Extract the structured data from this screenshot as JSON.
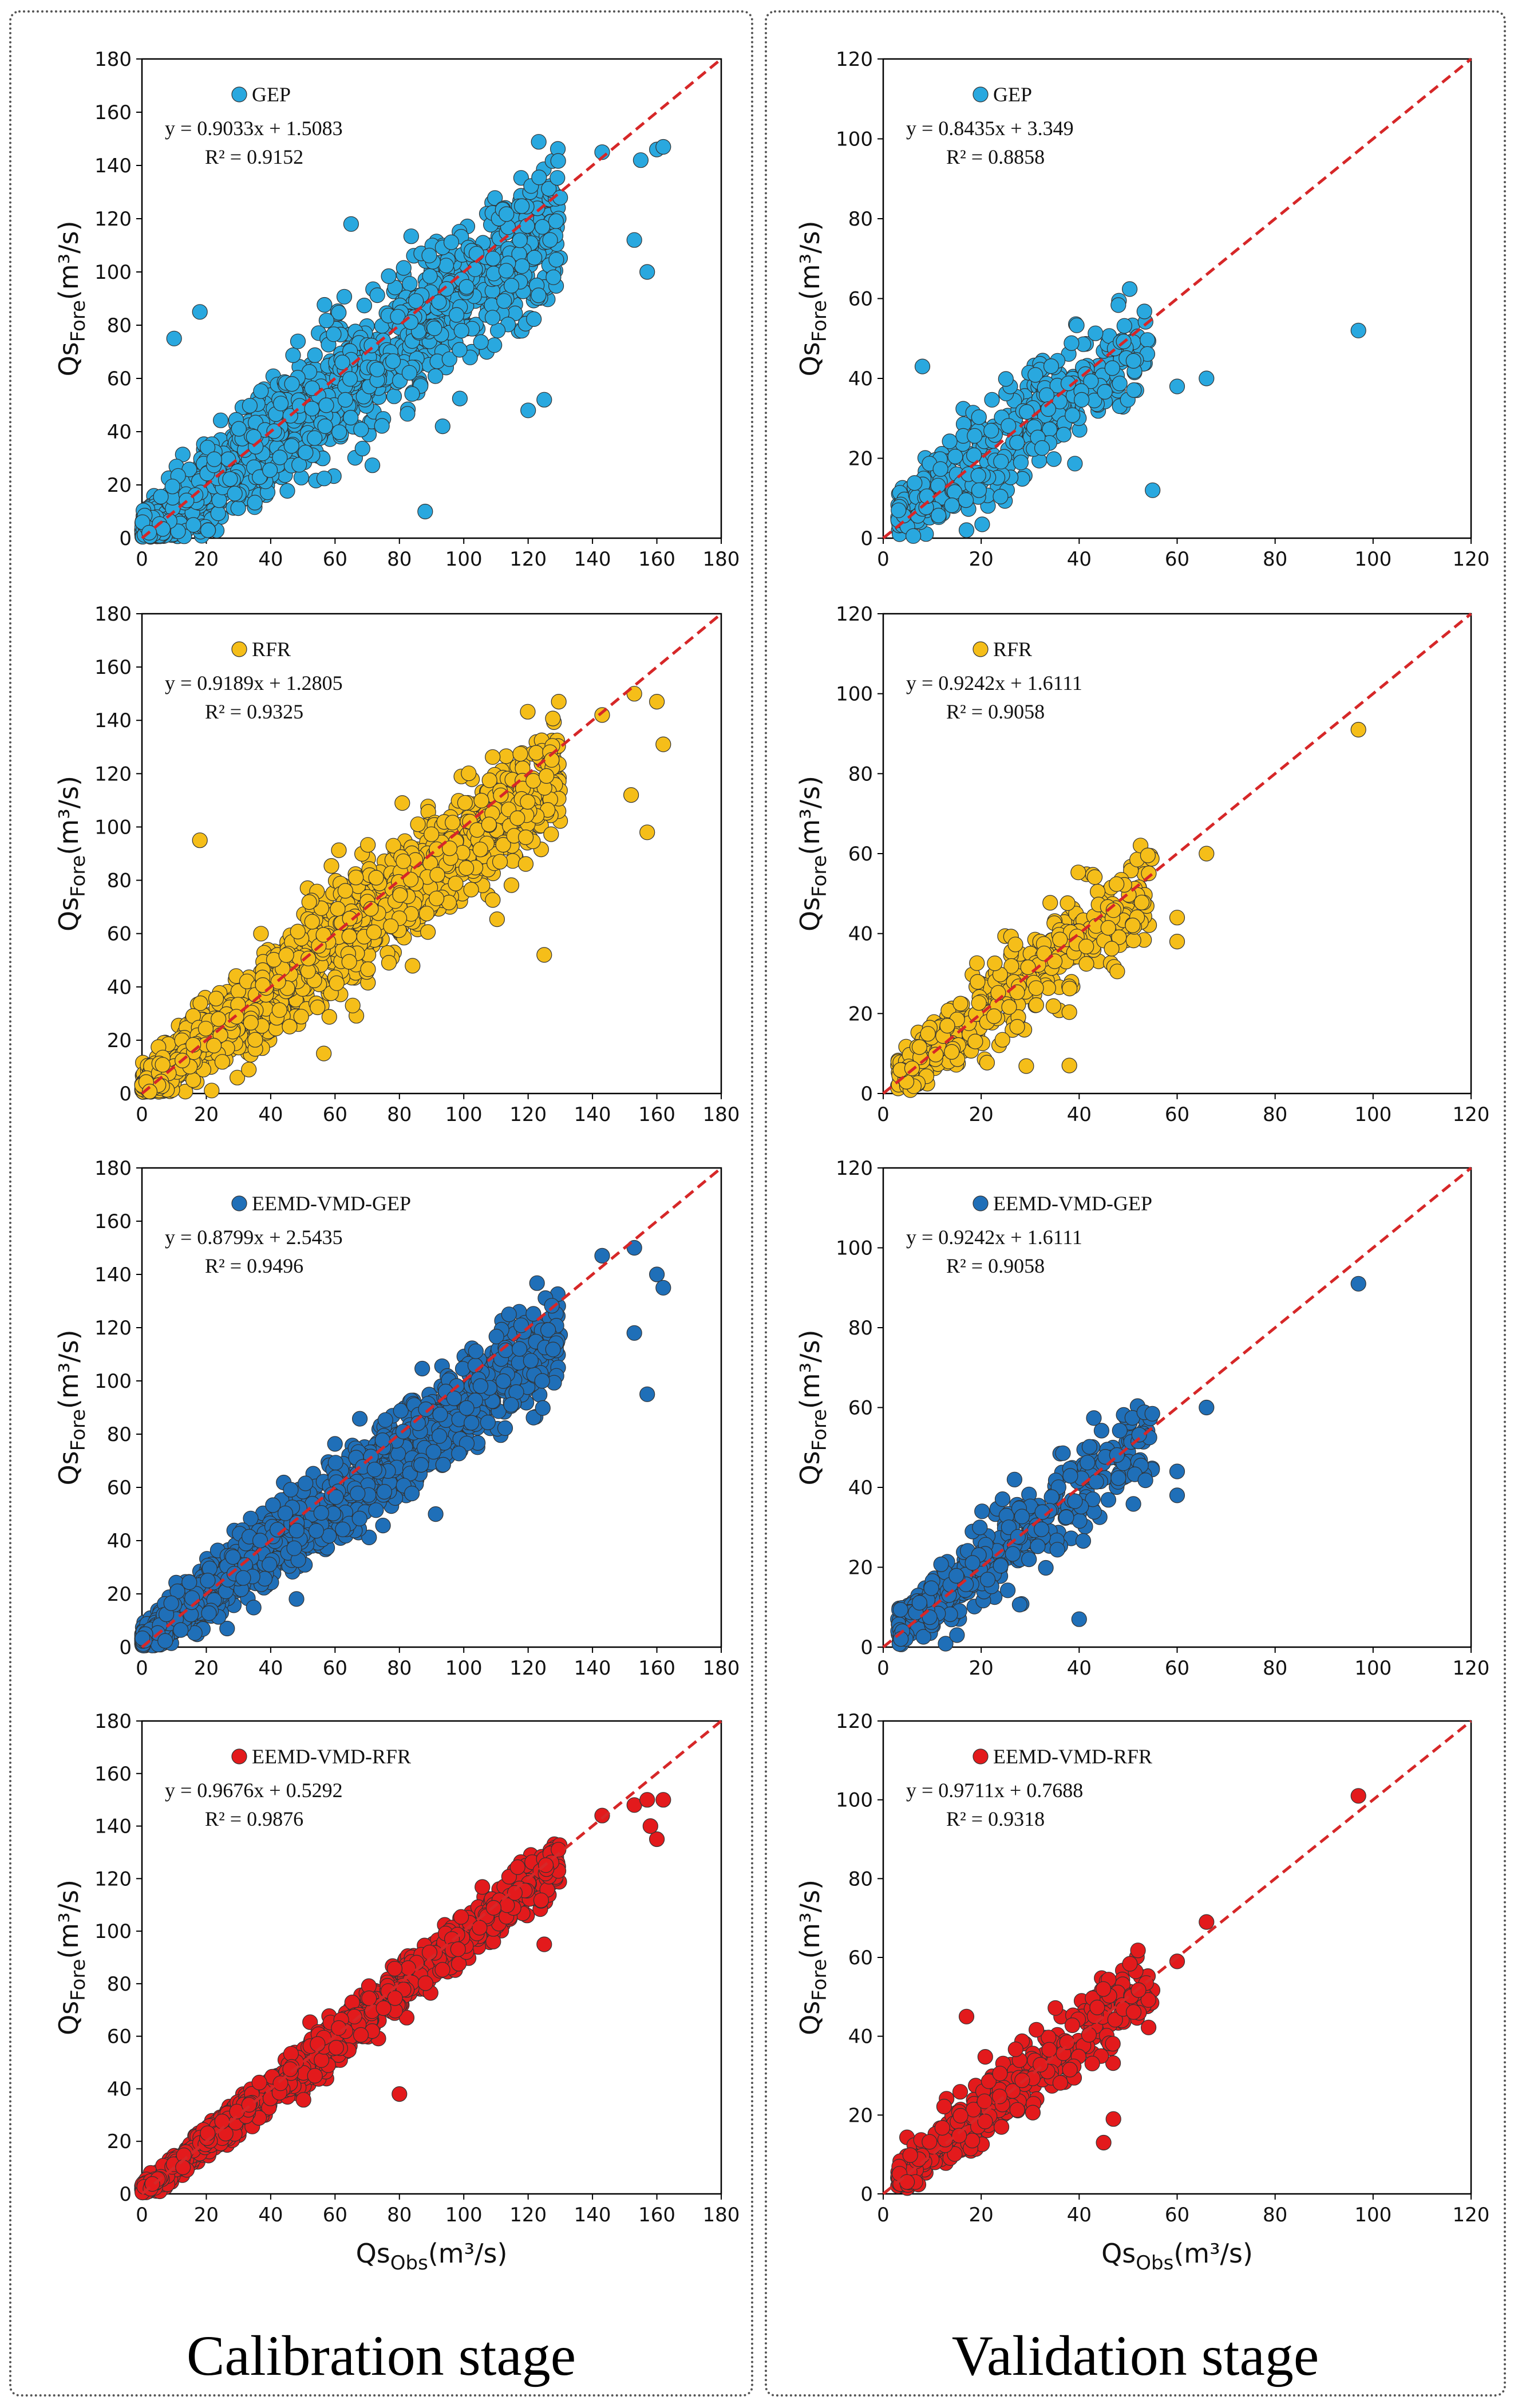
{
  "figure": {
    "stage_titles": {
      "calibration": "Calibration stage",
      "validation": "Validation stage"
    },
    "axis_titles": {
      "y_main": "Qs",
      "y_sub": "Fore",
      "y_unit": "(m³/s)",
      "x_main": "Qs",
      "x_sub": "Obs",
      "x_unit": "(m³/s)"
    },
    "colors": {
      "GEP": "#29A8DF",
      "RFR": "#F5BE19",
      "EEMD-VMD-GEP": "#1F6FB8",
      "EEMD-VMD-RFR": "#E31A1C",
      "fit_line": "#D62728"
    }
  },
  "chart_data": [
    {
      "type": "scatter",
      "stage": "calibration",
      "model": "GEP",
      "legend": "GEP",
      "color": "#29A8DF",
      "equation": "y = 0.9033x + 1.5083",
      "r2_text": "R² = 0.9152",
      "slope": 0.9033,
      "intercept": 1.5083,
      "r2": 0.9152,
      "xlim": [
        0,
        180
      ],
      "ylim": [
        0,
        180
      ],
      "xticks": [
        0,
        20,
        40,
        60,
        80,
        100,
        120,
        140,
        160,
        180
      ],
      "yticks": [
        0,
        20,
        40,
        60,
        80,
        100,
        120,
        140,
        160,
        180
      ],
      "n_points": 1500,
      "x_range": [
        0,
        130
      ],
      "noise_sd": 13,
      "highlights": [
        [
          153,
          112
        ],
        [
          157,
          100
        ],
        [
          155,
          142
        ],
        [
          160,
          146
        ],
        [
          162,
          147
        ],
        [
          143,
          145
        ],
        [
          125,
          52
        ],
        [
          120,
          48
        ],
        [
          88,
          10
        ],
        [
          18,
          85
        ],
        [
          10,
          75
        ],
        [
          65,
          118
        ]
      ]
    },
    {
      "type": "scatter",
      "stage": "validation",
      "model": "GEP",
      "legend": "GEP",
      "color": "#29A8DF",
      "equation": "y = 0.8435x + 3.349",
      "r2_text": "R² = 0.8858",
      "slope": 0.8435,
      "intercept": 3.349,
      "r2": 0.8858,
      "xlim": [
        0,
        120
      ],
      "ylim": [
        0,
        120
      ],
      "xticks": [
        0,
        20,
        40,
        60,
        80,
        100,
        120
      ],
      "yticks": [
        0,
        20,
        40,
        60,
        80,
        100,
        120
      ],
      "n_points": 420,
      "x_range": [
        3,
        55
      ],
      "noise_sd": 7,
      "highlights": [
        [
          97,
          52
        ],
        [
          66,
          40
        ],
        [
          55,
          12
        ],
        [
          60,
          38
        ],
        [
          17,
          2
        ],
        [
          8,
          43
        ]
      ]
    },
    {
      "type": "scatter",
      "stage": "calibration",
      "model": "RFR",
      "legend": "RFR",
      "color": "#F5BE19",
      "equation": "y = 0.9189x + 1.2805",
      "r2_text": "R² = 0.9325",
      "slope": 0.9189,
      "intercept": 1.2805,
      "r2": 0.9325,
      "xlim": [
        0,
        180
      ],
      "ylim": [
        0,
        180
      ],
      "xticks": [
        0,
        20,
        40,
        60,
        80,
        100,
        120,
        140,
        160,
        180
      ],
      "yticks": [
        0,
        20,
        40,
        60,
        80,
        100,
        120,
        140,
        160,
        180
      ],
      "n_points": 1500,
      "x_range": [
        0,
        130
      ],
      "noise_sd": 11,
      "highlights": [
        [
          153,
          150
        ],
        [
          157,
          98
        ],
        [
          160,
          147
        ],
        [
          162,
          131
        ],
        [
          143,
          142
        ],
        [
          125,
          52
        ],
        [
          18,
          95
        ],
        [
          152,
          112
        ]
      ]
    },
    {
      "type": "scatter",
      "stage": "validation",
      "model": "RFR",
      "legend": "RFR",
      "color": "#F5BE19",
      "equation": "y = 0.9242x + 1.6111",
      "r2_text": "R² = 0.9058",
      "slope": 0.9242,
      "intercept": 1.6111,
      "r2": 0.9058,
      "xlim": [
        0,
        120
      ],
      "ylim": [
        0,
        120
      ],
      "xticks": [
        0,
        20,
        40,
        60,
        80,
        100,
        120
      ],
      "yticks": [
        0,
        20,
        40,
        60,
        80,
        100,
        120
      ],
      "n_points": 420,
      "x_range": [
        3,
        55
      ],
      "noise_sd": 6,
      "highlights": [
        [
          97,
          91
        ],
        [
          66,
          60
        ],
        [
          60,
          44
        ],
        [
          60,
          38
        ],
        [
          38,
          7
        ]
      ]
    },
    {
      "type": "scatter",
      "stage": "calibration",
      "model": "EEMD-VMD-GEP",
      "legend": "EEMD-VMD-GEP",
      "color": "#1F6FB8",
      "equation": "y = 0.8799x + 2.5435",
      "r2_text": "R² = 0.9496",
      "slope": 0.8799,
      "intercept": 2.5435,
      "r2": 0.9496,
      "xlim": [
        0,
        180
      ],
      "ylim": [
        0,
        180
      ],
      "xticks": [
        0,
        20,
        40,
        60,
        80,
        100,
        120,
        140,
        160,
        180
      ],
      "yticks": [
        0,
        20,
        40,
        60,
        80,
        100,
        120,
        140,
        160,
        180
      ],
      "n_points": 1500,
      "x_range": [
        0,
        130
      ],
      "noise_sd": 9,
      "highlights": [
        [
          153,
          150
        ],
        [
          157,
          95
        ],
        [
          160,
          140
        ],
        [
          162,
          135
        ],
        [
          143,
          147
        ],
        [
          153,
          118
        ]
      ]
    },
    {
      "type": "scatter",
      "stage": "validation",
      "model": "EEMD-VMD-GEP",
      "legend": "EEMD-VMD-GEP",
      "color": "#1F6FB8",
      "equation": "y = 0.9242x + 1.6111",
      "r2_text": "R² = 0.9058",
      "slope": 0.9242,
      "intercept": 1.6111,
      "r2": 0.9058,
      "xlim": [
        0,
        120
      ],
      "ylim": [
        0,
        120
      ],
      "xticks": [
        0,
        20,
        40,
        60,
        80,
        100,
        120
      ],
      "yticks": [
        0,
        20,
        40,
        60,
        80,
        100,
        120
      ],
      "n_points": 420,
      "x_range": [
        3,
        55
      ],
      "noise_sd": 6,
      "highlights": [
        [
          97,
          91
        ],
        [
          66,
          60
        ],
        [
          60,
          44
        ],
        [
          60,
          38
        ],
        [
          40,
          7
        ]
      ]
    },
    {
      "type": "scatter",
      "stage": "calibration",
      "model": "EEMD-VMD-RFR",
      "legend": "EEMD-VMD-RFR",
      "color": "#E31A1C",
      "equation": "y = 0.9676x + 0.5292",
      "r2_text": "R² = 0.9876",
      "slope": 0.9676,
      "intercept": 0.5292,
      "r2": 0.9876,
      "xlim": [
        0,
        180
      ],
      "ylim": [
        0,
        180
      ],
      "xticks": [
        0,
        20,
        40,
        60,
        80,
        100,
        120,
        140,
        160,
        180
      ],
      "yticks": [
        0,
        20,
        40,
        60,
        80,
        100,
        120,
        140,
        160,
        180
      ],
      "n_points": 1500,
      "x_range": [
        0,
        130
      ],
      "noise_sd": 4.5,
      "highlights": [
        [
          153,
          148
        ],
        [
          157,
          150
        ],
        [
          160,
          135
        ],
        [
          162,
          150
        ],
        [
          158,
          140
        ],
        [
          143,
          144
        ],
        [
          125,
          95
        ],
        [
          80,
          38
        ]
      ]
    },
    {
      "type": "scatter",
      "stage": "validation",
      "model": "EEMD-VMD-RFR",
      "legend": "EEMD-VMD-RFR",
      "color": "#E31A1C",
      "equation": "y = 0.9711x + 0.7688",
      "r2_text": "R² = 0.9318",
      "slope": 0.9711,
      "intercept": 0.7688,
      "r2": 0.9318,
      "xlim": [
        0,
        120
      ],
      "ylim": [
        0,
        120
      ],
      "xticks": [
        0,
        20,
        40,
        60,
        80,
        100,
        120
      ],
      "yticks": [
        0,
        20,
        40,
        60,
        80,
        100,
        120
      ],
      "n_points": 420,
      "x_range": [
        3,
        55
      ],
      "noise_sd": 5,
      "highlights": [
        [
          97,
          101
        ],
        [
          66,
          69
        ],
        [
          60,
          59
        ],
        [
          17,
          45
        ],
        [
          47,
          19
        ],
        [
          45,
          13
        ]
      ]
    }
  ]
}
